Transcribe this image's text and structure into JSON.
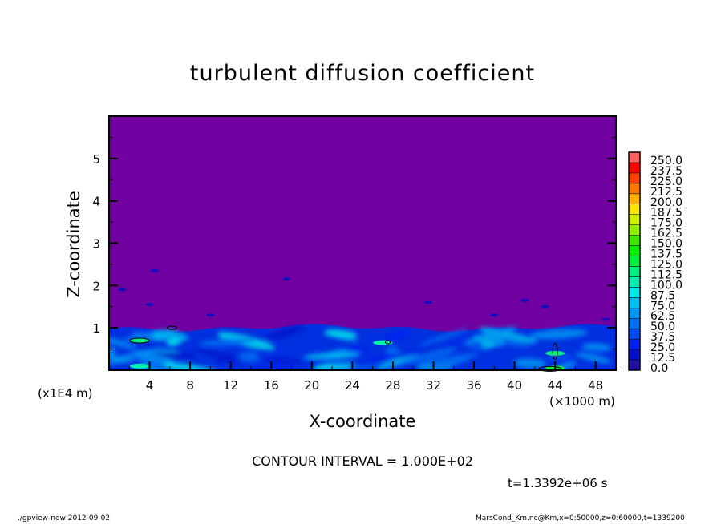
{
  "chart_data": {
    "type": "heatmap",
    "title": "turbulent diffusion coefficient",
    "xlabel": "X-coordinate",
    "ylabel": "Z-coordinate",
    "x_unit_label": "(×1000 m)",
    "y_unit_label": "(x1E4 m)",
    "xlim": [
      0,
      50
    ],
    "ylim": [
      0,
      6
    ],
    "x_ticks": [
      "4",
      "8",
      "12",
      "16",
      "20",
      "24",
      "28",
      "32",
      "36",
      "40",
      "44",
      "48"
    ],
    "y_ticks": [
      "1",
      "2",
      "3",
      "4",
      "5"
    ],
    "colorbar": {
      "levels": [
        "0.0",
        "12.5",
        "25.0",
        "37.5",
        "50.0",
        "62.5",
        "75.0",
        "87.5",
        "100.0",
        "112.5",
        "125.0",
        "137.5",
        "150.0",
        "162.5",
        "175.0",
        "187.5",
        "200.0",
        "212.5",
        "225.0",
        "237.5",
        "250.0"
      ],
      "colors": [
        "#7000a0",
        "#2010a0",
        "#0010c8",
        "#0020f0",
        "#0048f0",
        "#0070f0",
        "#0098f0",
        "#00c0f0",
        "#00e8e8",
        "#00f0b0",
        "#00f080",
        "#00f040",
        "#00f000",
        "#40e800",
        "#90f000",
        "#d0f000",
        "#ffe800",
        "#ffb000",
        "#ff7800",
        "#ff4000",
        "#ff0000",
        "#ff6060"
      ]
    },
    "field_description_levels": {
      "above_z1": "0.0",
      "below_z1_range": [
        "12.5",
        "125.0"
      ]
    },
    "contour_interval": "CONTOUR INTERVAL = 1.000E+02",
    "time_label": "t=1.3392e+06 s"
  },
  "footer": {
    "left": "./gpview-new  2012-09-02",
    "right": "MarsCond_Km.nc@Km,x=0:50000,z=0:60000,t=1339200"
  }
}
